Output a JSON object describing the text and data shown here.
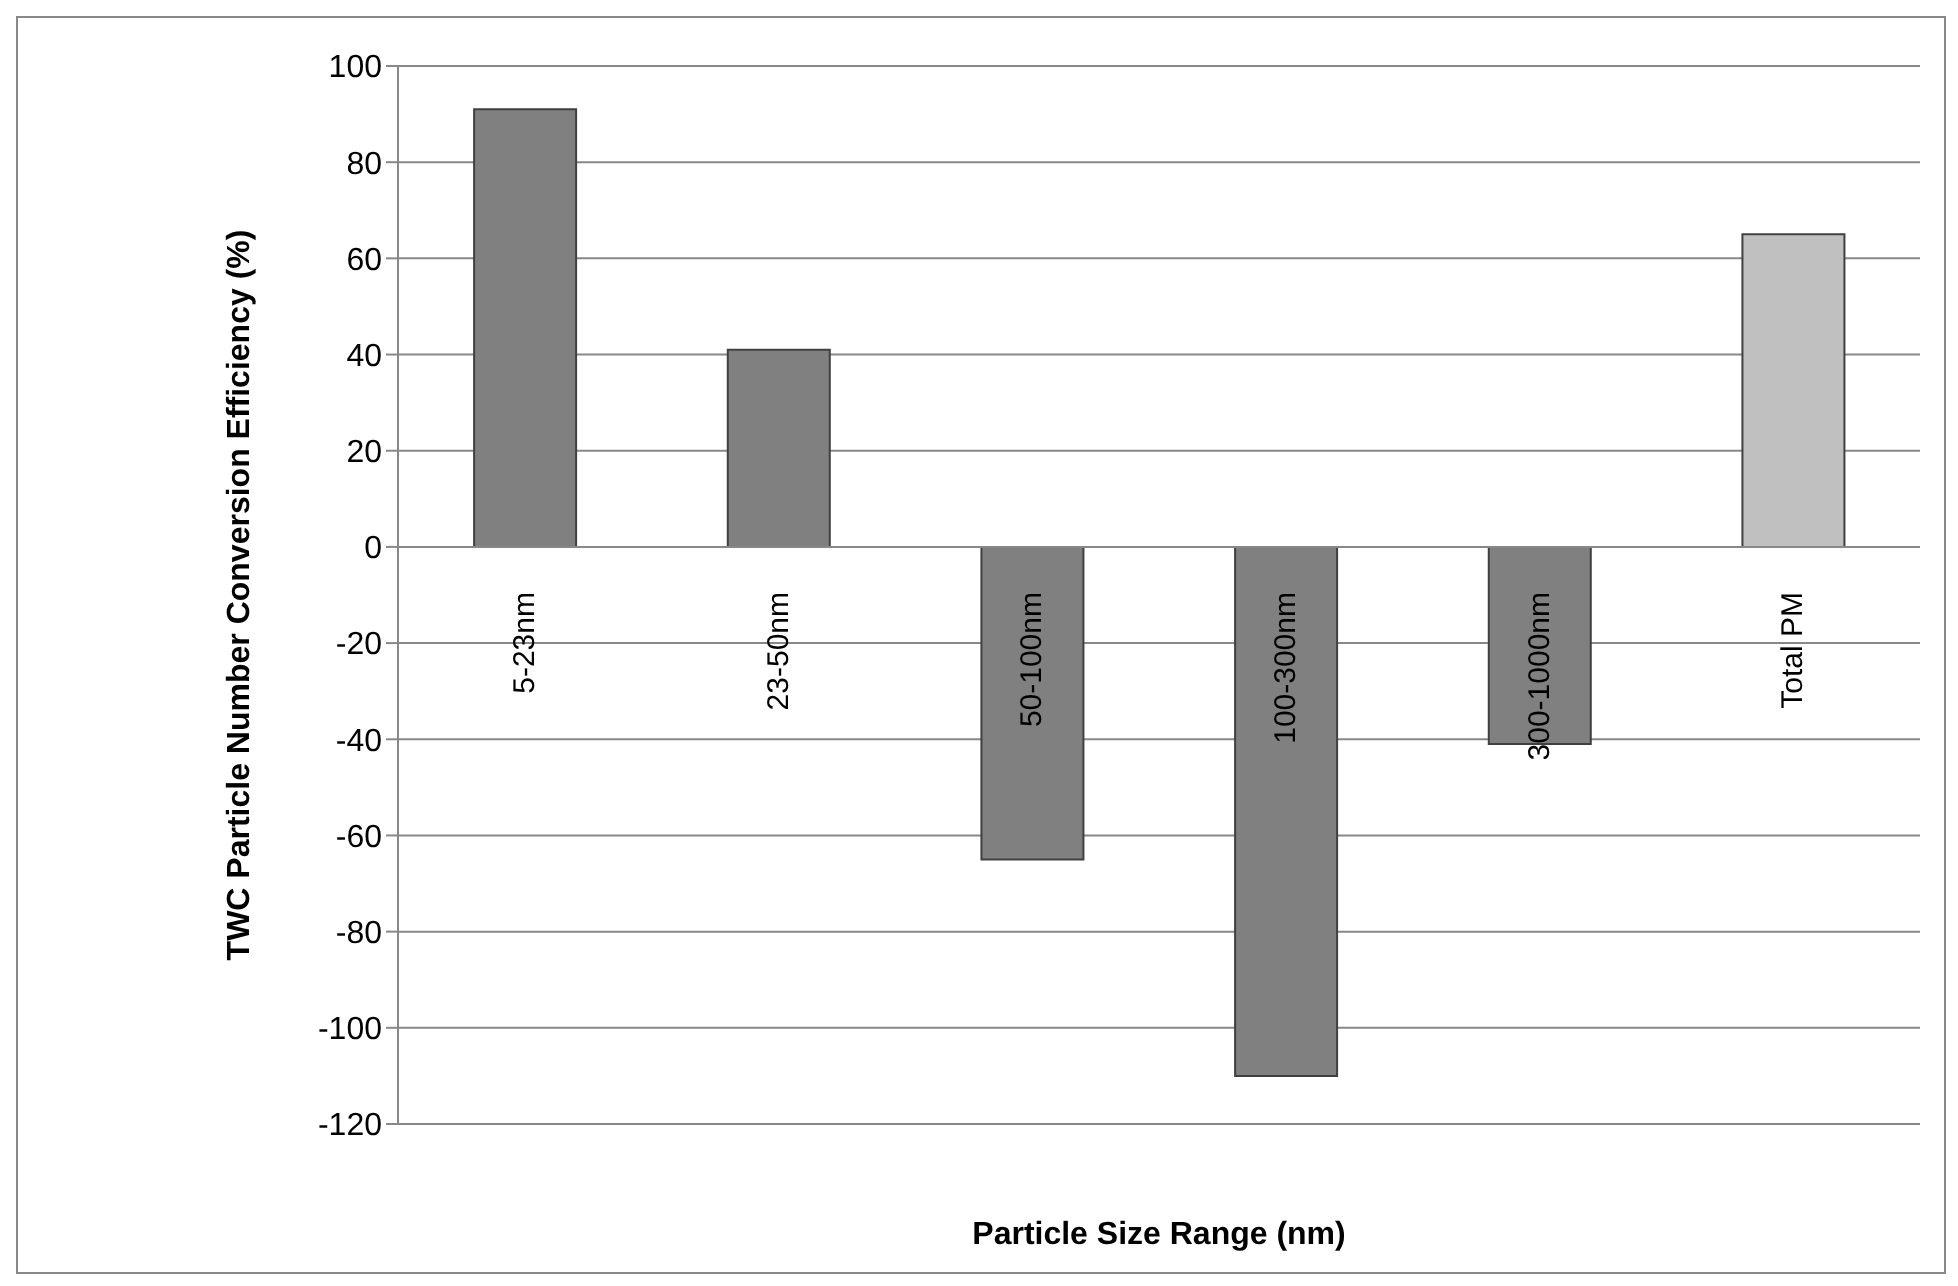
{
  "chart_data": {
    "type": "bar",
    "xlabel": "Particle Size Range (nm)",
    "ylabel": "TWC Particle Number Conversion Efficiency (%)",
    "categories": [
      "5-23nm",
      "23-50nm",
      "50-100nm",
      "100-300nm",
      "300-1000nm",
      "Total PM"
    ],
    "values": [
      91,
      41,
      -65,
      -110,
      -41,
      65
    ],
    "colors": [
      "#808080",
      "#808080",
      "#808080",
      "#808080",
      "#808080",
      "#c0c0c0"
    ],
    "ylim": [
      -120,
      100
    ],
    "yticks": [
      -120,
      -100,
      -80,
      -60,
      -40,
      -20,
      0,
      20,
      40,
      60,
      80,
      100
    ],
    "grid": "y"
  }
}
